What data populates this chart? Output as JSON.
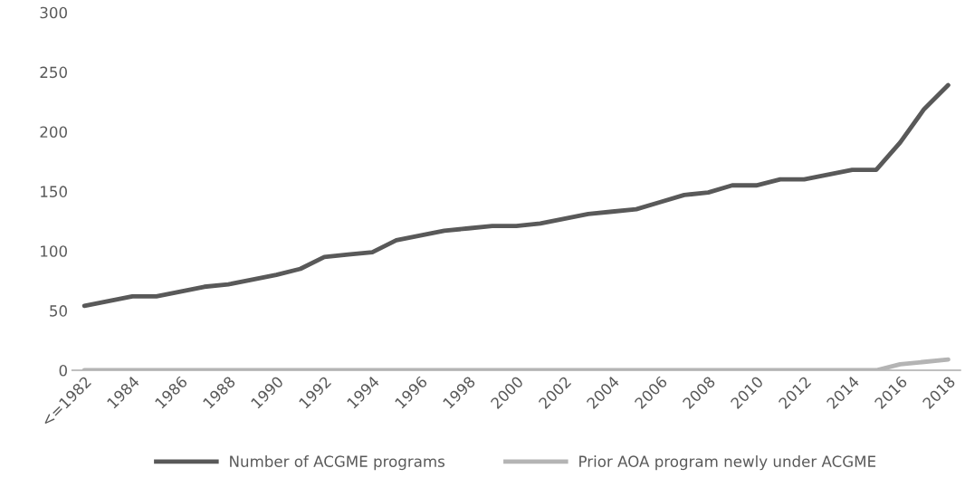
{
  "chart_data": {
    "type": "line",
    "categories": [
      "<=1982",
      null,
      "1984",
      null,
      "1986",
      null,
      "1988",
      null,
      "1990",
      null,
      "1992",
      null,
      "1994",
      null,
      "1996",
      null,
      "1998",
      null,
      "2000",
      null,
      "2002",
      null,
      "2004",
      null,
      "2006",
      null,
      "2008",
      null,
      "2010",
      null,
      "2012",
      null,
      "2014",
      null,
      "2016",
      null,
      "2018"
    ],
    "series": [
      {
        "name": "Number of ACGME programs",
        "color": "#595959",
        "values": [
          54,
          58,
          62,
          62,
          66,
          70,
          72,
          76,
          80,
          85,
          95,
          97,
          99,
          109,
          113,
          117,
          119,
          121,
          121,
          123,
          127,
          131,
          133,
          135,
          141,
          147,
          149,
          155,
          155,
          160,
          160,
          164,
          168,
          168,
          191,
          219,
          239
        ]
      },
      {
        "name": "Prior AOA program newly under ACGME",
        "color": "#b4b4b4",
        "values": [
          0,
          0,
          0,
          0,
          0,
          0,
          0,
          0,
          0,
          0,
          0,
          0,
          0,
          0,
          0,
          0,
          0,
          0,
          0,
          0,
          0,
          0,
          0,
          0,
          0,
          0,
          0,
          0,
          0,
          0,
          0,
          0,
          0,
          0,
          5,
          7,
          9
        ]
      }
    ],
    "ylim": [
      0,
      300
    ],
    "yticks": [
      0,
      50,
      100,
      150,
      200,
      250,
      300
    ],
    "legend": "bottom",
    "marker": "none",
    "line_style": "solid"
  }
}
